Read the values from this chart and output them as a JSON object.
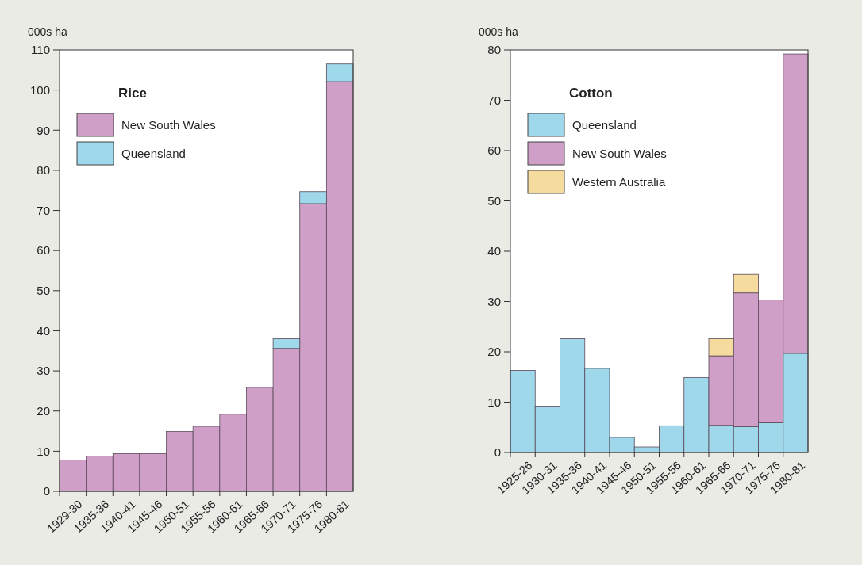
{
  "chart_data": [
    {
      "type": "bar",
      "stacked": true,
      "legend_title": "Rice",
      "ylabel": "000s ha",
      "legend": "top left",
      "grid": false,
      "categories": [
        "1929-30",
        "1935-36",
        "1940-41",
        "1945-46",
        "1950-51",
        "1955-56",
        "1960-61",
        "1965-66",
        "1970-71",
        "1975-76",
        "1980-81"
      ],
      "ylim": [
        0,
        110
      ],
      "yticks": [
        0,
        10,
        20,
        30,
        40,
        50,
        60,
        70,
        80,
        90,
        100,
        110
      ],
      "series": [
        {
          "name": "New South Wales",
          "color": "#cf9fc8",
          "values": [
            7.8,
            8.8,
            9.4,
            9.4,
            14.9,
            16.2,
            19.2,
            25.9,
            35.6,
            71.7,
            102.1
          ]
        },
        {
          "name": "Queensland",
          "color": "#9fd8ea",
          "values": [
            null,
            null,
            null,
            null,
            null,
            null,
            null,
            null,
            2.4,
            3.0,
            4.4
          ]
        }
      ]
    },
    {
      "type": "bar",
      "stacked": true,
      "legend_title": "Cotton",
      "ylabel": "000s ha",
      "legend": "top left",
      "grid": false,
      "categories": [
        "1925-26",
        "1930-31",
        "1935-36",
        "1940-41",
        "1945-46",
        "1950-51",
        "1955-56",
        "1960-61",
        "1965-66",
        "1970-71",
        "1975-76",
        "1980-81"
      ],
      "ylim": [
        0,
        80
      ],
      "yticks": [
        0,
        10,
        20,
        30,
        40,
        50,
        60,
        70,
        80
      ],
      "series": [
        {
          "name": "Queensland",
          "color": "#9fd8ea",
          "values": [
            16.3,
            9.2,
            22.6,
            16.7,
            3.0,
            1.1,
            5.3,
            14.9,
            5.4,
            5.1,
            5.9,
            19.7
          ]
        },
        {
          "name": "New South Wales",
          "color": "#cf9fc8",
          "values": [
            null,
            null,
            null,
            null,
            null,
            null,
            null,
            null,
            13.8,
            26.6,
            24.4,
            59.5
          ]
        },
        {
          "name": "Western Australia",
          "color": "#f5dc9e",
          "values": [
            null,
            null,
            null,
            null,
            null,
            null,
            null,
            null,
            3.4,
            3.7,
            null,
            null
          ]
        }
      ]
    }
  ]
}
